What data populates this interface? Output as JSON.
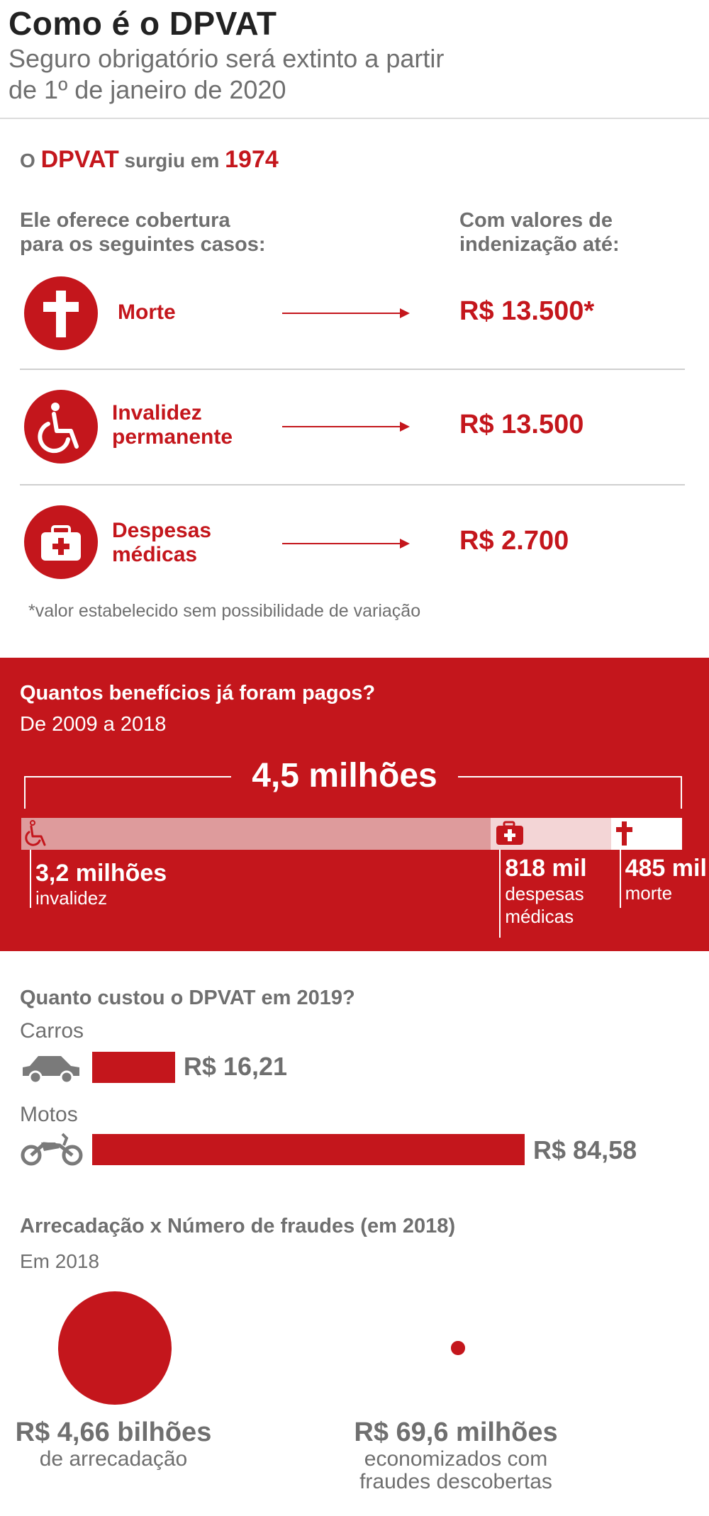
{
  "header": {
    "title": "Como é o DPVAT",
    "subtitle_line1": "Seguro obrigatório será extinto a partir",
    "subtitle_line2": "de 1º de janeiro de 2020"
  },
  "intro": {
    "prefix": "O",
    "brand": "DPVAT",
    "middle": "surgiu em",
    "year": "1974"
  },
  "coverage": {
    "left_heading_line1": "Ele oferece cobertura",
    "left_heading_line2": "para os seguintes casos:",
    "right_heading_line1": "Com valores de",
    "right_heading_line2": "indenização até:",
    "items": [
      {
        "icon": "cross-icon",
        "label_line1": "Morte",
        "label_line2": "",
        "value": "R$ 13.500*"
      },
      {
        "icon": "wheelchair-icon",
        "label_line1": "Invalidez",
        "label_line2": "permanente",
        "value": "R$ 13.500"
      },
      {
        "icon": "medical-kit-icon",
        "label_line1": "Despesas",
        "label_line2": "médicas",
        "value": "R$ 2.700"
      }
    ],
    "footnote": "*valor estabelecido sem possibilidade de variação"
  },
  "benefits": {
    "heading": "Quantos benefícios já foram pagos?",
    "period": "De 2009 a 2018",
    "total": "4,5 milhões",
    "colors": {
      "panel": "#c4161c",
      "invalidez": "#de9b9c",
      "despesas": "#f3d5d6",
      "morte": "#ffffff"
    },
    "segments": [
      {
        "icon": "wheelchair-icon",
        "value": "3,2 milhões",
        "label_line1": "invalidez",
        "label_line2": ""
      },
      {
        "icon": "medical-kit-icon",
        "value": "818 mil",
        "label_line1": "despesas",
        "label_line2": "médicas"
      },
      {
        "icon": "cross-icon",
        "value": "485 mil",
        "label_line1": "morte",
        "label_line2": ""
      }
    ]
  },
  "cost": {
    "heading": "Quanto custou o DPVAT em 2019?",
    "rows": [
      {
        "icon": "car-icon",
        "label": "Carros",
        "value_label": "R$ 16,21"
      },
      {
        "icon": "motorcycle-icon",
        "label": "Motos",
        "value_label": "R$ 84,58"
      }
    ]
  },
  "fraud": {
    "heading": "Arrecadação x Número de fraudes (em 2018)",
    "period": "Em 2018",
    "items": [
      {
        "value": "R$ 4,66 bilhões",
        "label_line1": "de arrecadação",
        "label_line2": ""
      },
      {
        "value": "R$ 69,6 milhões",
        "label_line1": "economizados com",
        "label_line2": "fraudes descobertas"
      }
    ]
  },
  "chart_data": [
    {
      "type": "bar",
      "title": "Quantos benefícios já foram pagos?",
      "subtitle": "De 2009 a 2018",
      "categories": [
        "invalidez",
        "despesas médicas",
        "morte"
      ],
      "values": [
        3200000,
        818000,
        485000
      ],
      "total": 4500000,
      "stacked": true,
      "orientation": "horizontal"
    },
    {
      "type": "bar",
      "title": "Quanto custou o DPVAT em 2019?",
      "categories": [
        "Carros",
        "Motos"
      ],
      "values": [
        16.21,
        84.58
      ],
      "orientation": "horizontal"
    },
    {
      "type": "scatter",
      "title": "Arrecadação x Número de fraudes (em 2018)",
      "subtitle": "Em 2018",
      "categories": [
        "de arrecadação",
        "economizados com fraudes descobertas"
      ],
      "values": [
        4660000000,
        69600000
      ],
      "marker": "area-proportional circle"
    }
  ]
}
